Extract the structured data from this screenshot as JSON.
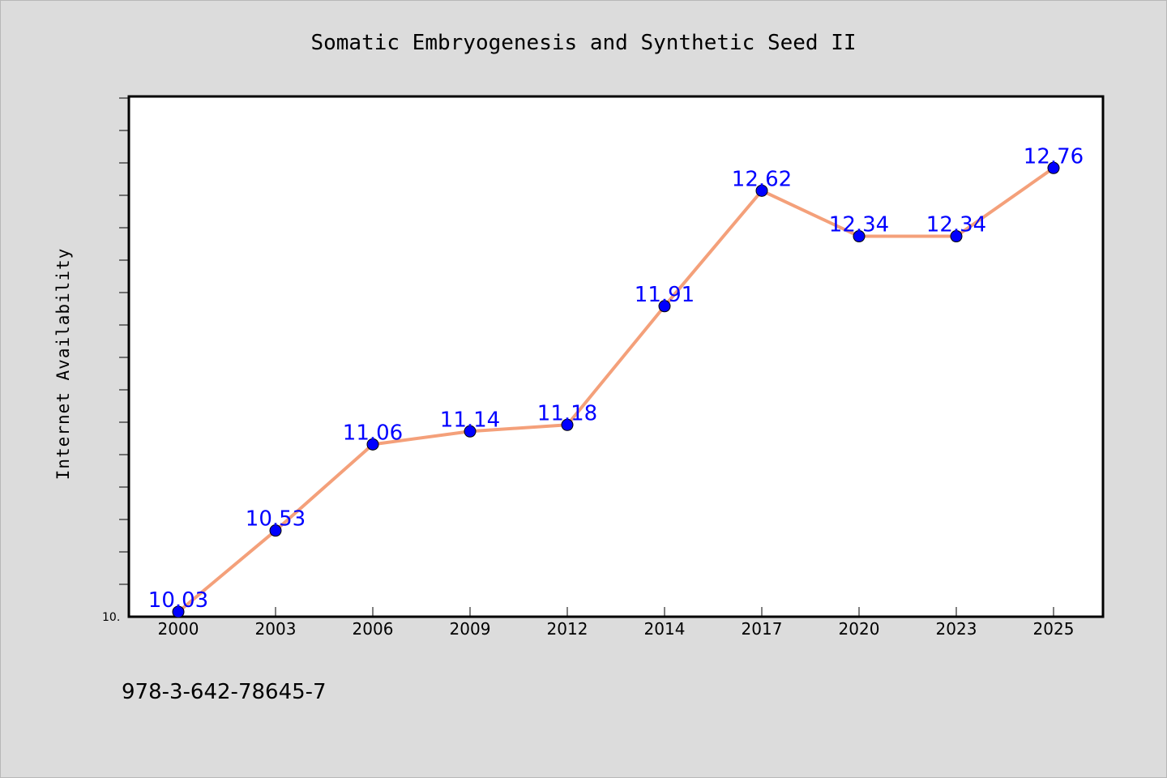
{
  "chart_data": {
    "type": "line",
    "title": "Somatic Embryogenesis and Synthetic Seed II",
    "xlabel": "",
    "ylabel": "Internet Availability",
    "categories": [
      "2000",
      "2003",
      "2006",
      "2009",
      "2012",
      "2014",
      "2017",
      "2020",
      "2023",
      "2025"
    ],
    "values": [
      10.03,
      10.53,
      11.06,
      11.14,
      11.18,
      11.91,
      12.62,
      12.34,
      12.34,
      12.76
    ],
    "data_labels": [
      "10.03",
      "10.53",
      "11.06",
      "11.14",
      "11.18",
      "11.91",
      "12.62",
      "12.34",
      "12.34",
      "12.76"
    ],
    "y_tick_label": "10.",
    "ylim": [
      10.0,
      13.2
    ],
    "grid": false,
    "line_color": "#f4a07a",
    "marker_color": "#0000ff",
    "label_color": "#0000ff"
  },
  "footer_text": "978-3-642-78645-7"
}
